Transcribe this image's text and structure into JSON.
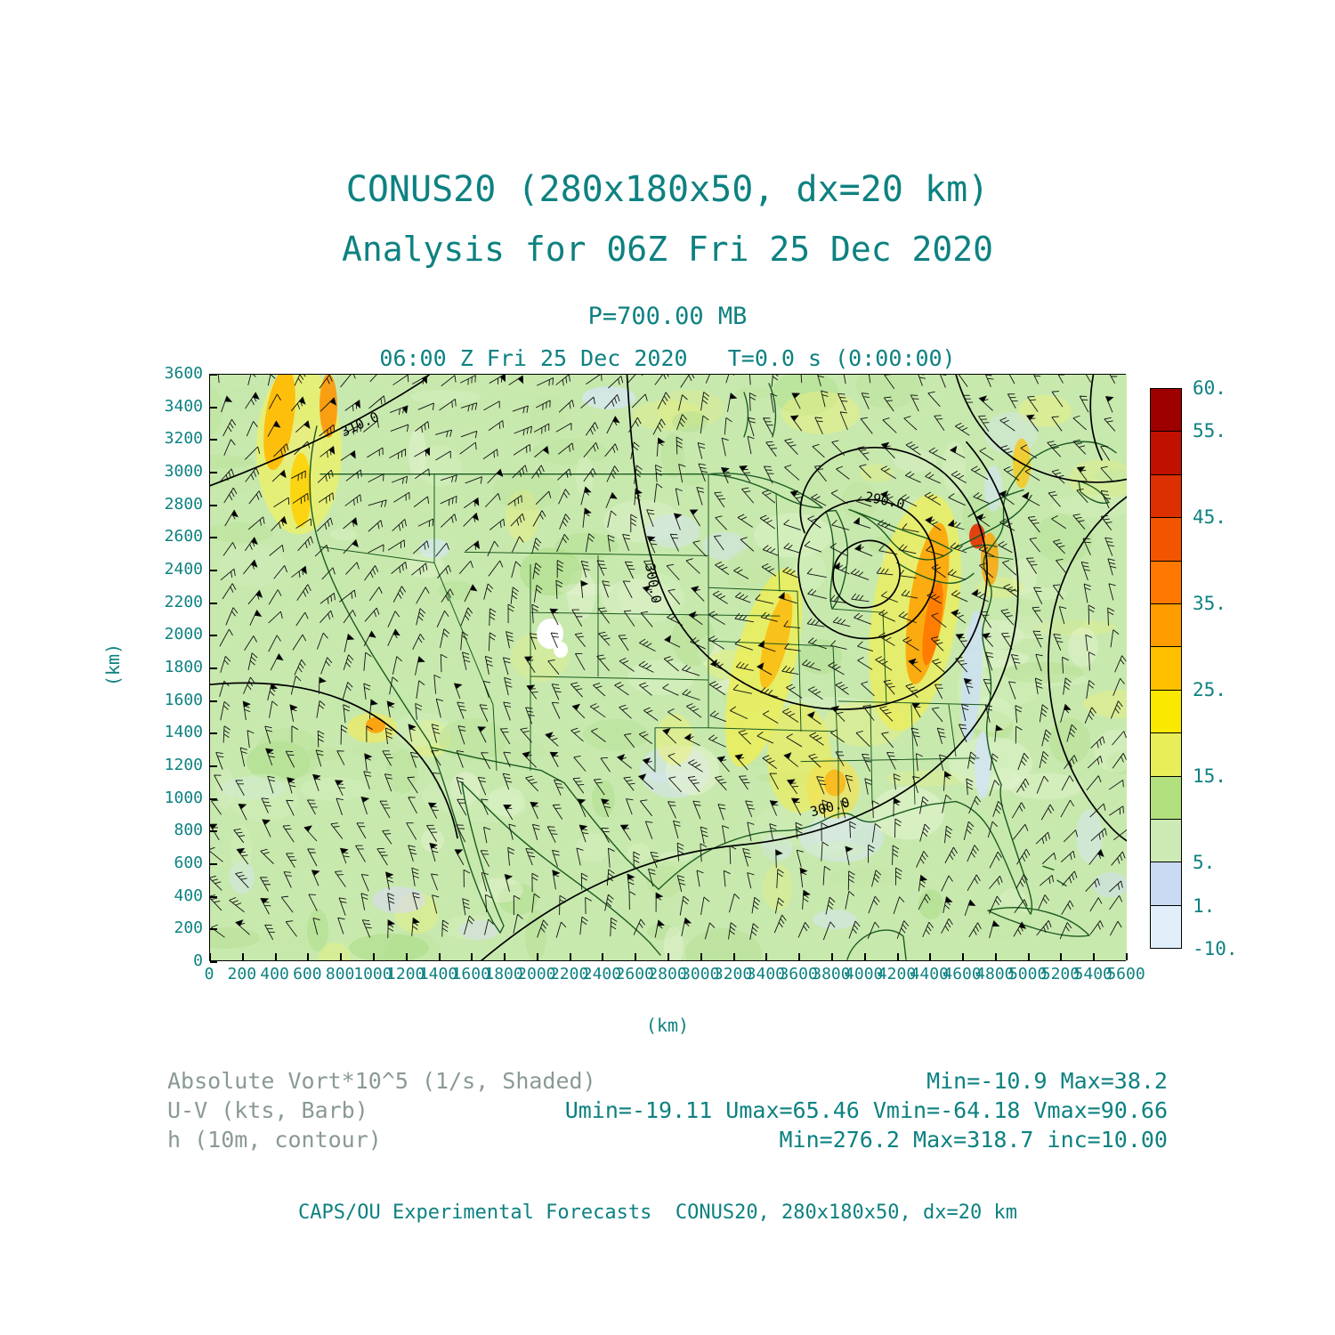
{
  "header": {
    "title": "CONUS20 (280x180x50, dx=20 km)",
    "subtitle": "Analysis for 06Z Fri 25 Dec 2020",
    "level": "P=700.00 MB",
    "time_line": "06:00 Z Fri 25 Dec 2020   T=0.0 s (0:00:00)"
  },
  "axes": {
    "x_label": "(km)",
    "y_label": "(km)",
    "x_ticks": [
      "0",
      "200",
      "400",
      "600",
      "800",
      "1000",
      "1200",
      "1400",
      "1600",
      "1800",
      "2000",
      "2200",
      "2400",
      "2600",
      "2800",
      "3000",
      "3200",
      "3400",
      "3600",
      "3800",
      "4000",
      "4200",
      "4400",
      "4600",
      "4800",
      "5000",
      "5200",
      "5400",
      "5600"
    ],
    "y_ticks": [
      "3600",
      "3400",
      "3200",
      "3000",
      "2800",
      "2600",
      "2400",
      "2200",
      "2000",
      "1800",
      "1600",
      "1400",
      "1200",
      "1000",
      "800",
      "600",
      "400",
      "200",
      "0"
    ]
  },
  "colorbar": {
    "segments": [
      "#9e0000",
      "#c01000",
      "#dc3000",
      "#f25400",
      "#ff7800",
      "#ff9c00",
      "#ffc000",
      "#fbe800",
      "#e8ee58",
      "#b2e07e",
      "#cdeab4",
      "#c9daf2",
      "#e1effb"
    ],
    "labels": [
      "60.",
      "55.",
      "",
      "45.",
      "",
      "35.",
      "",
      "25.",
      "",
      "15.",
      "",
      "5.",
      "1.",
      "-10."
    ]
  },
  "legend": {
    "rows": [
      {
        "label": "Absolute Vort*10^5 (1/s, Shaded)",
        "value": "Min=-10.9 Max=38.2"
      },
      {
        "label": "U-V (kts, Barb)",
        "value": "Umin=-19.11 Umax=65.46 Vmin=-64.18 Vmax=90.66"
      },
      {
        "label": "h (10m, contour)",
        "value": "Min=276.2 Max=318.7 inc=10.00"
      }
    ]
  },
  "footer": "CAPS/OU Experimental Forecasts  CONUS20, 280x180x50, dx=20 km",
  "chart_data": {
    "type": "heatmap",
    "title": "CONUS20 (280x180x50, dx=20 km)",
    "subtitle": "Analysis for 06Z Fri 25 Dec 2020",
    "level": "P=700.00 MB",
    "valid_time": "06:00 Z Fri 25 Dec 2020",
    "forecast_time": "T=0.0 s (0:00:00)",
    "xlabel": "(km)",
    "ylabel": "(km)",
    "xlim": [
      0,
      5600
    ],
    "ylim": [
      0,
      3600
    ],
    "tick_step_km": 200,
    "shaded_field": {
      "name": "Absolute Vort*10^5 (1/s, Shaded)",
      "min": -10.9,
      "max": 38.2,
      "color_levels": [
        -10,
        1,
        5,
        10,
        15,
        20,
        25,
        30,
        35,
        40,
        45,
        50,
        55,
        60
      ]
    },
    "wind_field": {
      "name": "U-V (kts, Barb)",
      "umin": -19.11,
      "umax": 65.46,
      "vmin": -64.18,
      "vmax": 90.66
    },
    "contour_field": {
      "name": "h (10m, contour)",
      "min": 276.2,
      "max": 318.7,
      "interval": 10.0
    },
    "contour_labels": [
      "310.0",
      "300.0",
      "290.0",
      "300.0"
    ]
  }
}
